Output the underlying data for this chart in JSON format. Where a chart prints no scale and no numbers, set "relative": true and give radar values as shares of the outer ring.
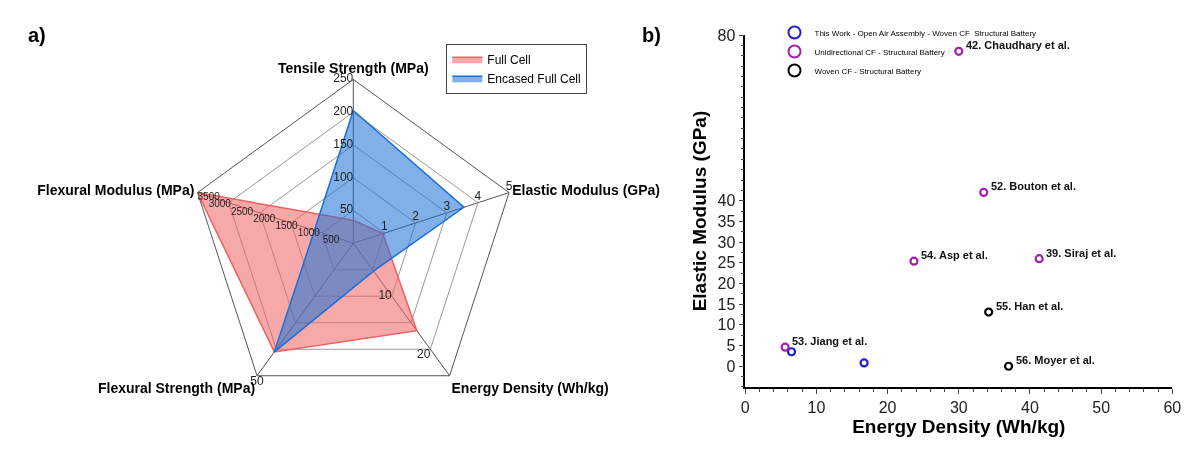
{
  "chart_data": [
    {
      "type": "radar",
      "title": "a)",
      "relative": true,
      "legend": "top right",
      "grid": true,
      "categories": [
        "Tensile Strength (MPa)",
        "Elastic Modulus (GPa)",
        "Energy Density (Wh/kg)",
        "Flexural Strength (MPa)",
        "Flexural Modulus (MPa)"
      ],
      "series": [
        {
          "name": "Full Cell",
          "color": "#f06060",
          "values": [
            0.14,
            0.19,
            0.66,
            0.82,
            1.0
          ]
        },
        {
          "name": "Encased Full Cell",
          "color": "#1a6fd6",
          "values": [
            0.81,
            0.71,
            0.21,
            0.82,
            0.25
          ]
        }
      ],
      "annotations": [
        "0",
        "50",
        "100",
        "150",
        "200",
        "250",
        "1",
        "2",
        "3",
        "4",
        "5",
        "10",
        "20",
        "50",
        "500",
        "1000",
        "1500",
        "2000",
        "2500",
        "3000",
        "3500"
      ]
    },
    {
      "type": "scatter",
      "title": "b)",
      "xlabel": "Energy Density (Wh/kg)",
      "ylabel": "Elastic Modulus (GPa)",
      "legend": "top left",
      "marker": "circle",
      "xlim": [
        0,
        60
      ],
      "xticks": [
        0,
        10,
        20,
        30,
        40,
        50,
        60
      ],
      "ylim": [
        -5,
        80
      ],
      "yticks": [
        0,
        5,
        10,
        15,
        20,
        25,
        30,
        35,
        40,
        80
      ],
      "series": [
        {
          "name": "This Work - Open Air Assembly - Woven CF  Structural Battery",
          "color": "#1f1fcc",
          "x": [
            6.5,
            16.7
          ],
          "values": [
            3.5,
            0.8
          ]
        },
        {
          "name": "Unidirectional CF - Structural Battery",
          "color": "#a020b0",
          "x": [
            5.6,
            23.7,
            41.3,
            33.5,
            30.0
          ],
          "values": [
            4.6,
            25.4,
            26.0,
            42.0,
            76.1
          ]
        },
        {
          "name": "Woven CF - Structural Battery",
          "color": "#000000",
          "x": [
            34.2,
            37.0
          ],
          "values": [
            13.1,
            0.0
          ]
        }
      ],
      "annotations": [
        {
          "text": "42. Chaudhary et al.",
          "x": 30.0,
          "y": 76.1
        },
        {
          "text": "52. Bouton et al.",
          "x": 33.5,
          "y": 42.0
        },
        {
          "text": "54. Asp et al.",
          "x": 23.7,
          "y": 25.4
        },
        {
          "text": "39. Siraj et al.",
          "x": 41.3,
          "y": 26.0
        },
        {
          "text": "55. Han et al.",
          "x": 34.2,
          "y": 13.1
        },
        {
          "text": "53. Jiang et al.",
          "x": 5.6,
          "y": 4.6
        },
        {
          "text": "56. Moyer et al.",
          "x": 37.0,
          "y": 0.0
        }
      ]
    }
  ]
}
